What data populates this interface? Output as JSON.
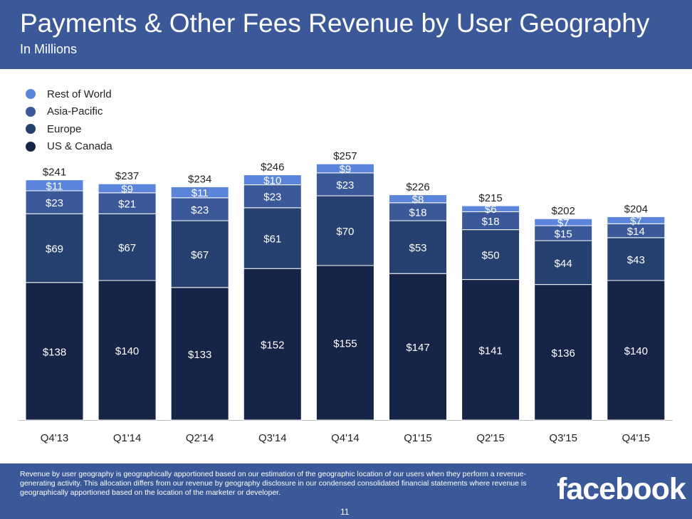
{
  "header": {
    "title": "Payments & Other Fees Revenue by User Geography",
    "subtitle": "In Millions"
  },
  "chart_data": {
    "type": "bar",
    "stacked": true,
    "categories": [
      "Q4'13",
      "Q1'14",
      "Q2'14",
      "Q3'14",
      "Q4'14",
      "Q1'15",
      "Q2'15",
      "Q3'15",
      "Q4'15"
    ],
    "series": [
      {
        "name": "US & Canada",
        "color": "#162447",
        "values": [
          138,
          140,
          133,
          152,
          155,
          147,
          141,
          136,
          140
        ],
        "labels": [
          "$138",
          "$140",
          "$133",
          "$152",
          "$155",
          "$147",
          "$141",
          "$136",
          "$140"
        ]
      },
      {
        "name": "Europe",
        "color": "#26406f",
        "values": [
          69,
          67,
          67,
          61,
          70,
          53,
          50,
          44,
          43
        ],
        "labels": [
          "$69",
          "$67",
          "$67",
          "$61",
          "$70",
          "$53",
          "$50",
          "$44",
          "$43"
        ]
      },
      {
        "name": "Asia-Pacific",
        "color": "#3b5998",
        "values": [
          23,
          21,
          23,
          23,
          23,
          18,
          18,
          15,
          14
        ],
        "labels": [
          "$23",
          "$21",
          "$23",
          "$23",
          "$23",
          "$18",
          "$18",
          "$15",
          "$14"
        ]
      },
      {
        "name": "Rest of World",
        "color": "#5b85db",
        "values": [
          11,
          9,
          11,
          10,
          9,
          8,
          6,
          7,
          7
        ],
        "labels": [
          "$11",
          "$9",
          "$11",
          "$10",
          "$9",
          "$8",
          "$6",
          "$7",
          "$7"
        ]
      }
    ],
    "totals": [
      241,
      237,
      234,
      246,
      257,
      226,
      215,
      202,
      204
    ],
    "total_labels": [
      "$241",
      "$237",
      "$234",
      "$246",
      "$257",
      "$226",
      "$215",
      "$202",
      "$204"
    ],
    "legend_placement": "top-left",
    "grid": false
  },
  "footer": {
    "note": "Revenue by user geography is geographically apportioned based on our estimation of the geographic location of our users when they perform a revenue-generating activity. This allocation differs from our revenue by geography disclosure in our condensed consolidated financial statements where revenue is geographically apportioned based on the location of the marketer or developer.",
    "page_number": "11",
    "logo_text": "facebook"
  }
}
